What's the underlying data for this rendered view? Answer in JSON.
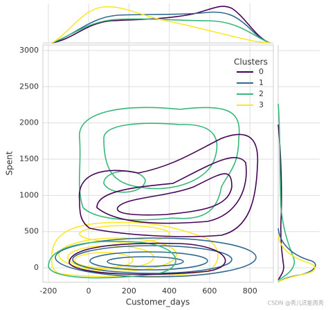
{
  "chart_data": {
    "type": "kde",
    "xlabel": "Customer_days",
    "ylabel": "Spent",
    "xlim": [
      -227,
      916
    ],
    "ylim": [
      -200,
      3076
    ],
    "xticks": [
      -200,
      0,
      200,
      400,
      600,
      800
    ],
    "yticks": [
      0,
      500,
      1000,
      1500,
      2000,
      2500,
      3000
    ],
    "grid": true,
    "legend_title": "Clusters",
    "legend_position": "upper right",
    "series": [
      {
        "name": "0",
        "color": "#440154"
      },
      {
        "name": "1",
        "color": "#31688e"
      },
      {
        "name": "2",
        "color": "#35b779"
      },
      {
        "name": "3",
        "color": "#fde725"
      }
    ]
  },
  "watermark": "CSDN @秀儿还能再秀"
}
